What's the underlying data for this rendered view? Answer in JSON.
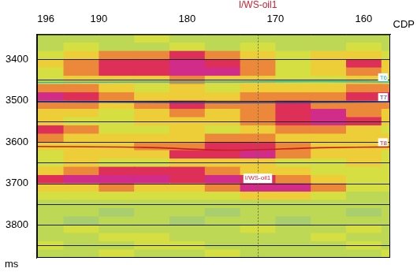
{
  "chart_data": {
    "type": "heatmap",
    "x_label": "CDP",
    "y_label": "ms",
    "xlim": [
      197,
      157
    ],
    "xticks": [
      196,
      190,
      180,
      170,
      160
    ],
    "ylim": [
      3340,
      3880
    ],
    "yticks": [
      3400,
      3500,
      3600,
      3700,
      3800
    ],
    "grid": false,
    "cells": {
      "x": [
        196,
        192,
        188,
        184,
        180,
        176,
        172,
        168,
        164,
        160,
        156
      ],
      "y": [
        3350,
        3370,
        3390,
        3410,
        3430,
        3450,
        3470,
        3490,
        3510,
        3530,
        3550,
        3570,
        3590,
        3610,
        3630,
        3650,
        3670,
        3690,
        3710,
        3730,
        3750,
        3770,
        3790,
        3810,
        3830,
        3850,
        3870
      ],
      "values": [
        [
          3,
          3,
          3,
          4,
          3,
          3,
          3,
          3,
          3,
          3,
          3
        ],
        [
          3,
          4,
          3,
          3,
          4,
          3,
          4,
          3,
          3,
          4,
          3
        ],
        [
          4,
          5,
          6,
          6,
          7,
          6,
          5,
          4,
          5,
          5,
          4
        ],
        [
          5,
          6,
          7,
          7,
          8,
          7,
          6,
          4,
          5,
          7,
          5
        ],
        [
          4,
          6,
          7,
          7,
          8,
          8,
          6,
          4,
          5,
          6,
          5
        ],
        [
          4,
          5,
          5,
          5,
          6,
          5,
          5,
          4,
          4,
          5,
          4
        ],
        [
          6,
          6,
          5,
          4,
          5,
          4,
          5,
          5,
          5,
          6,
          6
        ],
        [
          8,
          7,
          6,
          5,
          5,
          5,
          6,
          6,
          6,
          7,
          8
        ],
        [
          6,
          6,
          5,
          6,
          7,
          6,
          6,
          7,
          6,
          6,
          6
        ],
        [
          5,
          5,
          4,
          5,
          6,
          5,
          6,
          7,
          8,
          6,
          5
        ],
        [
          5,
          4,
          4,
          5,
          5,
          5,
          6,
          7,
          8,
          7,
          5
        ],
        [
          7,
          6,
          4,
          4,
          5,
          4,
          5,
          6,
          6,
          5,
          4
        ],
        [
          6,
          5,
          5,
          5,
          5,
          6,
          6,
          5,
          5,
          5,
          5
        ],
        [
          5,
          5,
          5,
          6,
          6,
          7,
          7,
          6,
          5,
          5,
          5
        ],
        [
          4,
          5,
          5,
          5,
          7,
          7,
          8,
          6,
          5,
          5,
          4
        ],
        [
          4,
          5,
          4,
          4,
          5,
          5,
          5,
          4,
          4,
          5,
          4
        ],
        [
          5,
          6,
          7,
          7,
          7,
          6,
          5,
          5,
          4,
          4,
          4
        ],
        [
          7,
          8,
          8,
          8,
          7,
          8,
          7,
          6,
          5,
          4,
          4
        ],
        [
          5,
          5,
          6,
          5,
          5,
          6,
          8,
          8,
          6,
          4,
          4
        ],
        [
          4,
          4,
          4,
          4,
          4,
          4,
          5,
          5,
          4,
          3,
          3
        ],
        [
          3,
          3,
          3,
          3,
          3,
          3,
          3,
          3,
          3,
          3,
          3
        ],
        [
          3,
          3,
          2,
          3,
          3,
          2,
          3,
          3,
          3,
          2,
          3
        ],
        [
          3,
          2,
          3,
          3,
          2,
          3,
          3,
          2,
          3,
          3,
          3
        ],
        [
          3,
          4,
          3,
          3,
          3,
          3,
          4,
          3,
          3,
          4,
          3
        ],
        [
          3,
          3,
          4,
          4,
          3,
          3,
          3,
          3,
          4,
          3,
          3
        ],
        [
          4,
          3,
          3,
          4,
          4,
          3,
          3,
          3,
          3,
          4,
          3
        ],
        [
          3,
          3,
          4,
          3,
          3,
          4,
          3,
          3,
          3,
          3,
          4
        ]
      ]
    },
    "zlim": [
      0,
      9
    ],
    "time_lines": [
      3400,
      3450,
      3500,
      3550,
      3600,
      3650,
      3700,
      3750,
      3800,
      3850
    ],
    "horizons": [
      {
        "name": "T6",
        "color": "#20b8c8",
        "x": [
          197,
          185,
          175,
          165,
          157
        ],
        "values": [
          3456,
          3455,
          3455,
          3454,
          3455
        ]
      },
      {
        "name": "T7",
        "color": "#283c8c",
        "x": [
          197,
          185,
          175,
          165,
          157
        ],
        "values": [
          3503,
          3504,
          3505,
          3504,
          3503
        ]
      },
      {
        "name": "T8",
        "color": "#c42020",
        "x": [
          197,
          185,
          175,
          165,
          157
        ],
        "values": [
          3611,
          3613,
          3620,
          3614,
          3612
        ]
      }
    ],
    "well": {
      "name": "I/WS-oil1",
      "cdp": 172
    },
    "annotations": [
      {
        "text": "I/WS-oil1",
        "x": 172,
        "y": 3688
      }
    ]
  }
}
